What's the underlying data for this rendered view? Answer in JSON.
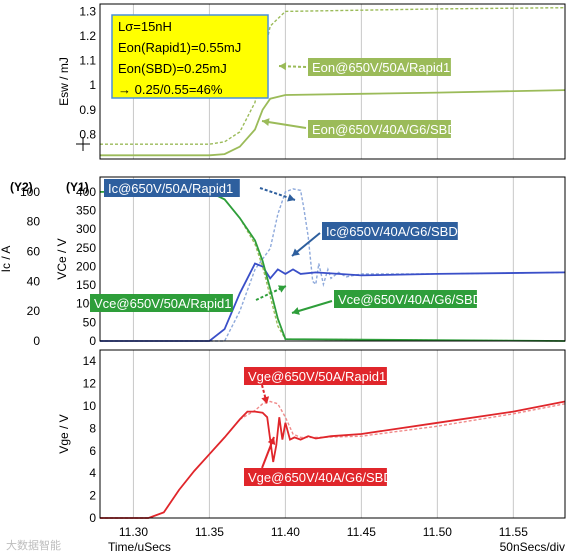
{
  "chart_data": [
    {
      "type": "line",
      "ylabel": "Esw / mJ",
      "ylim": [
        0.7,
        1.33
      ],
      "yticks": [
        0.8,
        0.9,
        1.0,
        1.1,
        1.2,
        1.3
      ],
      "xlim": [
        11.278,
        11.584
      ],
      "grid": "vertical",
      "annotation_box": [
        "Lσ=15nH",
        "Eon(Rapid1)=0.55mJ",
        "Eon(SBD)=0.25mJ",
        "→ 0.25/0.55=46%"
      ],
      "series": [
        {
          "name": "Eon@650V/50A/Rapid1",
          "style": "dotted",
          "color": "#9bbb59",
          "x": [
            11.278,
            11.35,
            11.36,
            11.37,
            11.38,
            11.385,
            11.39,
            11.4,
            11.45,
            11.5,
            11.584
          ],
          "y": [
            0.76,
            0.76,
            0.77,
            0.81,
            0.93,
            1.1,
            1.24,
            1.3,
            1.305,
            1.31,
            1.315
          ]
        },
        {
          "name": "Eon@650V/40A/G6/SBD",
          "style": "solid",
          "color": "#9bbb59",
          "x": [
            11.278,
            11.35,
            11.36,
            11.37,
            11.38,
            11.385,
            11.39,
            11.4,
            11.45,
            11.5,
            11.584
          ],
          "y": [
            0.715,
            0.715,
            0.72,
            0.75,
            0.82,
            0.9,
            0.945,
            0.96,
            0.965,
            0.97,
            0.98
          ]
        }
      ]
    },
    {
      "type": "line",
      "ylabel_left": "Ic / A",
      "ylabel_right": "VCe / V",
      "axis_tags": [
        "(Y2)",
        "(Y1)"
      ],
      "ylim_ic": [
        0,
        110
      ],
      "yticks_ic": [
        0,
        20,
        40,
        60,
        80,
        100
      ],
      "ylim_vce": [
        0,
        440
      ],
      "yticks_vce": [
        0,
        50,
        100,
        150,
        200,
        250,
        300,
        350,
        400
      ],
      "xlim": [
        11.278,
        11.584
      ],
      "grid": "vertical",
      "series": [
        {
          "name": "Ic@650V/50A/Rapid1",
          "axis": "ic",
          "style": "dotted",
          "color": "#8ea9db",
          "x": [
            11.278,
            11.36,
            11.37,
            11.38,
            11.385,
            11.39,
            11.395,
            11.4,
            11.405,
            11.41,
            11.412,
            11.415,
            11.418,
            11.42,
            11.422,
            11.425,
            11.428,
            11.43,
            11.435,
            11.44,
            11.45,
            11.5,
            11.584
          ],
          "y": [
            0,
            0,
            20,
            48,
            55,
            62,
            85,
            100,
            102,
            101,
            90,
            70,
            40,
            38,
            52,
            38,
            48,
            42,
            46,
            43,
            45,
            45,
            46
          ]
        },
        {
          "name": "Ic@650V/40A/G6/SBD",
          "axis": "ic",
          "style": "solid",
          "color": "#3a4fc8",
          "x": [
            11.278,
            11.35,
            11.36,
            11.37,
            11.38,
            11.385,
            11.39,
            11.395,
            11.4,
            11.405,
            11.41,
            11.42,
            11.45,
            11.5,
            11.584
          ],
          "y": [
            0,
            0,
            8,
            32,
            52,
            50,
            42,
            48,
            45,
            48,
            45,
            46,
            44,
            45,
            46
          ]
        },
        {
          "name": "Vce@650V/50A/Rapid1",
          "axis": "vce",
          "style": "dotted",
          "color": "#9bbb59",
          "x": [
            11.278,
            11.35,
            11.36,
            11.37,
            11.38,
            11.385,
            11.39,
            11.395,
            11.4,
            11.584
          ],
          "y": [
            400,
            400,
            380,
            330,
            260,
            200,
            120,
            40,
            5,
            0
          ]
        },
        {
          "name": "Vce@650V/40A/G6/SBD",
          "axis": "vce",
          "style": "solid",
          "color": "#2e9e3a",
          "x": [
            11.278,
            11.35,
            11.36,
            11.37,
            11.38,
            11.385,
            11.39,
            11.395,
            11.4,
            11.584
          ],
          "y": [
            400,
            400,
            380,
            330,
            270,
            215,
            140,
            60,
            5,
            0
          ]
        }
      ]
    },
    {
      "type": "line",
      "ylabel": "Vge / V",
      "ylim": [
        0,
        15
      ],
      "yticks": [
        0,
        2,
        4,
        6,
        8,
        10,
        12,
        14
      ],
      "xlabel": "Time/uSecs",
      "xticks": [
        11.3,
        11.35,
        11.4,
        11.45,
        11.5,
        11.55
      ],
      "xlim": [
        11.278,
        11.584
      ],
      "grid": "vertical",
      "scale_note": "50nSecs/div",
      "series": [
        {
          "name": "Vge@650V/50A/Rapid1",
          "style": "dotted",
          "color": "#f08a8a",
          "x": [
            11.278,
            11.31,
            11.32,
            11.33,
            11.34,
            11.35,
            11.36,
            11.37,
            11.38,
            11.385,
            11.39,
            11.395,
            11.4,
            11.405,
            11.41,
            11.42,
            11.45,
            11.5,
            11.55,
            11.584
          ],
          "y": [
            0,
            0,
            0.5,
            2.5,
            4.2,
            5.7,
            7.2,
            8.8,
            9.6,
            10.2,
            10.4,
            10.2,
            9.0,
            7.5,
            7.2,
            7.2,
            7.3,
            8.2,
            9.3,
            10.2
          ]
        },
        {
          "name": "Vge@650V/40A/G6/SBD",
          "style": "solid",
          "color": "#e0262b",
          "x": [
            11.278,
            11.31,
            11.32,
            11.33,
            11.34,
            11.35,
            11.36,
            11.37,
            11.375,
            11.38,
            11.385,
            11.388,
            11.39,
            11.392,
            11.394,
            11.396,
            11.398,
            11.4,
            11.403,
            11.406,
            11.41,
            11.415,
            11.42,
            11.43,
            11.45,
            11.5,
            11.55,
            11.584
          ],
          "y": [
            0,
            0,
            0.5,
            2.5,
            4.2,
            5.7,
            7.2,
            8.8,
            9.5,
            9.5,
            9.4,
            9.0,
            7.0,
            5.0,
            6.5,
            9.0,
            7.0,
            8.5,
            7.0,
            7.2,
            7.0,
            7.3,
            7.1,
            7.3,
            7.5,
            8.5,
            9.5,
            10.4
          ]
        }
      ]
    }
  ],
  "watermarks": [
    "大数据智能"
  ]
}
